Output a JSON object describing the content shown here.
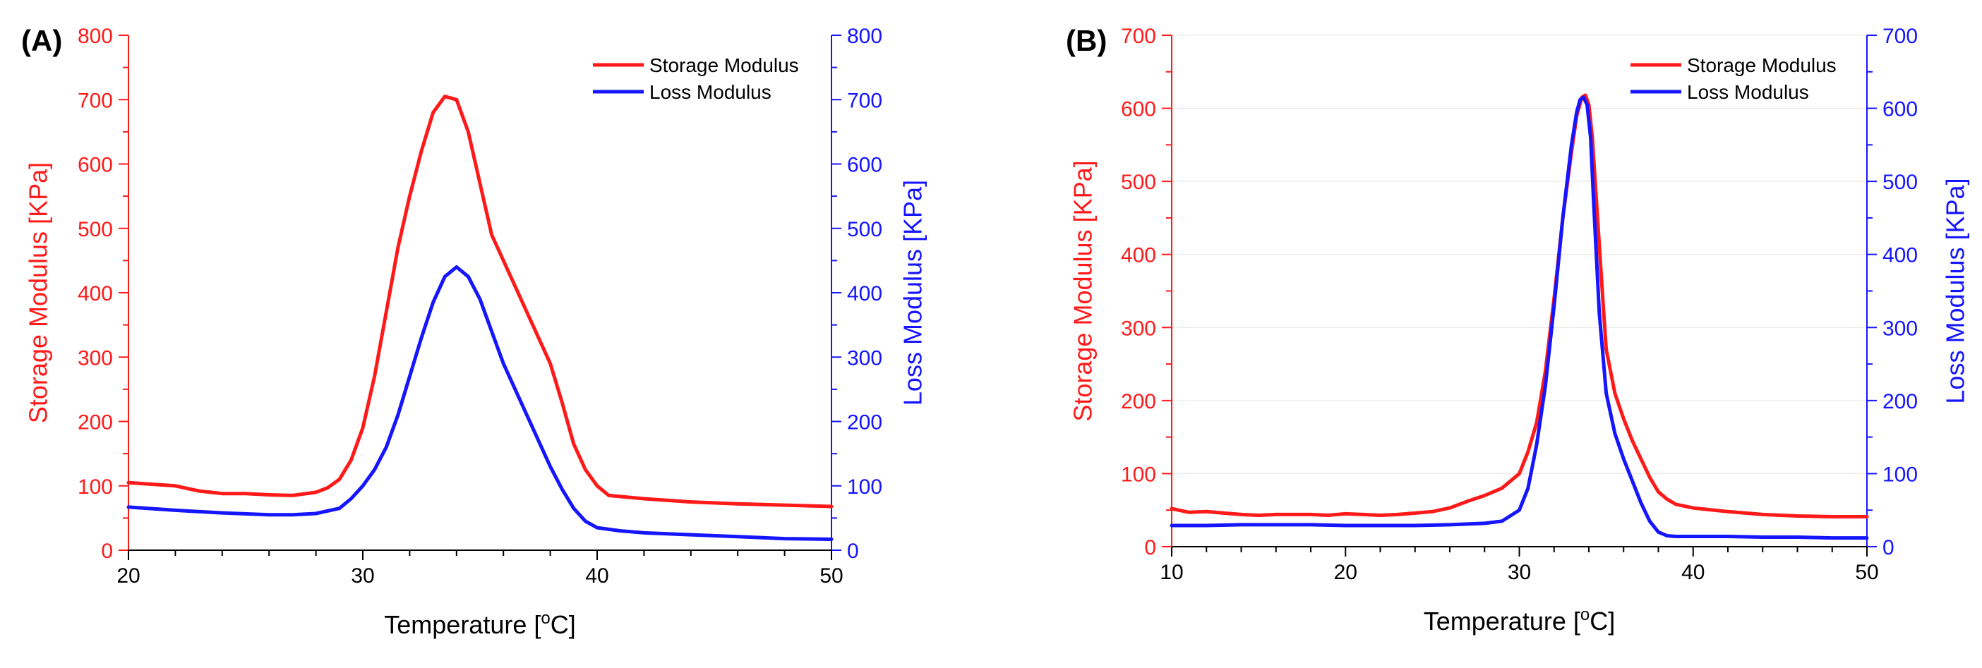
{
  "colors": {
    "storage": "#ff1a1a",
    "loss": "#1515ff",
    "axis": "#000000",
    "grid": "#e6e6e6"
  },
  "chart_data": [
    {
      "type": "line",
      "panel_label": "(A)",
      "xlabel": "Temperature [",
      "xlabel_sup": "o",
      "xlabel_end": "C]",
      "ylabel_left": "Storage Modulus [KPa]",
      "ylabel_right": "Loss Modulus [KPa]",
      "xlim": [
        20,
        50
      ],
      "ylim_left": [
        0,
        800
      ],
      "ylim_right": [
        0,
        800
      ],
      "x_ticks": [
        20,
        30,
        40,
        50
      ],
      "y_ticks_left": [
        0,
        100,
        200,
        300,
        400,
        500,
        600,
        700,
        800
      ],
      "y_ticks_right": [
        0,
        100,
        200,
        300,
        400,
        500,
        600,
        700,
        800
      ],
      "grid": false,
      "legend_position": "top-right",
      "series": [
        {
          "name": "Storage Modulus",
          "axis": "left",
          "x": [
            20,
            22,
            23,
            24,
            25,
            26,
            27,
            28,
            28.5,
            29,
            29.5,
            30,
            30.5,
            31,
            31.5,
            32,
            32.5,
            33,
            33.5,
            34,
            34.5,
            35,
            35.5,
            36,
            36.5,
            37,
            37.5,
            38,
            38.5,
            39,
            39.5,
            40,
            40.5,
            42,
            44,
            46,
            48,
            50
          ],
          "y": [
            105,
            100,
            92,
            88,
            88,
            86,
            85,
            90,
            97,
            110,
            140,
            190,
            270,
            370,
            470,
            550,
            620,
            680,
            705,
            700,
            650,
            570,
            490,
            450,
            410,
            370,
            330,
            290,
            230,
            165,
            125,
            100,
            85,
            80,
            75,
            72,
            70,
            68
          ]
        },
        {
          "name": "Loss Modulus",
          "axis": "right",
          "x": [
            20,
            22,
            24,
            26,
            27,
            28,
            29,
            29.5,
            30,
            30.5,
            31,
            31.5,
            32,
            32.5,
            33,
            33.5,
            34,
            34.5,
            35,
            35.5,
            36,
            36.5,
            37,
            37.5,
            38,
            38.5,
            39,
            39.5,
            40,
            41,
            42,
            44,
            46,
            48,
            50
          ],
          "y": [
            67,
            62,
            58,
            55,
            55,
            57,
            65,
            80,
            100,
            125,
            160,
            210,
            270,
            330,
            385,
            425,
            440,
            425,
            390,
            340,
            290,
            250,
            210,
            170,
            130,
            95,
            65,
            45,
            35,
            30,
            27,
            24,
            21,
            18,
            17
          ]
        }
      ]
    },
    {
      "type": "line",
      "panel_label": "(B)",
      "xlabel": "Temperature [",
      "xlabel_sup": "o",
      "xlabel_end": "C]",
      "ylabel_left": "Storage Modulus [KPa]",
      "ylabel_right": "Loss Modulus [KPa]",
      "xlim": [
        10,
        50
      ],
      "ylim_left": [
        0,
        700
      ],
      "ylim_right": [
        0,
        700
      ],
      "x_ticks": [
        10,
        20,
        30,
        40,
        50
      ],
      "y_ticks_left": [
        0,
        100,
        200,
        300,
        400,
        500,
        600,
        700
      ],
      "y_ticks_right": [
        0,
        100,
        200,
        300,
        400,
        500,
        600,
        700
      ],
      "grid": true,
      "legend_position": "top-right",
      "series": [
        {
          "name": "Storage Modulus",
          "axis": "left",
          "x": [
            10,
            11,
            12,
            13,
            14,
            15,
            16,
            17,
            18,
            19,
            20,
            21,
            22,
            23,
            24,
            25,
            26,
            27,
            28,
            29,
            30,
            30.5,
            31,
            31.5,
            32,
            32.5,
            33,
            33.3,
            33.6,
            33.8,
            34,
            34.2,
            34.5,
            34.8,
            35,
            35.5,
            36,
            36.5,
            37,
            37.5,
            38,
            38.5,
            39,
            40,
            42,
            44,
            46,
            48,
            50
          ],
          "y": [
            52,
            47,
            48,
            46,
            44,
            43,
            44,
            44,
            44,
            43,
            45,
            44,
            43,
            44,
            46,
            48,
            53,
            62,
            70,
            80,
            100,
            130,
            170,
            240,
            340,
            450,
            540,
            590,
            615,
            618,
            605,
            560,
            450,
            340,
            270,
            210,
            175,
            145,
            120,
            95,
            75,
            65,
            58,
            53,
            48,
            44,
            42,
            41,
            41
          ]
        },
        {
          "name": "Loss Modulus",
          "axis": "right",
          "x": [
            10,
            12,
            14,
            16,
            18,
            20,
            22,
            24,
            26,
            28,
            29,
            30,
            30.5,
            31,
            31.5,
            32,
            32.5,
            33,
            33.3,
            33.5,
            33.7,
            33.9,
            34.1,
            34.3,
            34.6,
            35,
            35.5,
            36,
            36.5,
            37,
            37.5,
            38,
            38.5,
            39,
            40,
            42,
            44,
            46,
            48,
            50
          ],
          "y": [
            29,
            29,
            30,
            30,
            30,
            29,
            29,
            29,
            30,
            32,
            35,
            50,
            80,
            140,
            220,
            330,
            450,
            550,
            595,
            612,
            615,
            605,
            560,
            460,
            320,
            210,
            155,
            120,
            90,
            60,
            35,
            20,
            15,
            14,
            14,
            14,
            13,
            13,
            12,
            12
          ]
        }
      ]
    }
  ]
}
